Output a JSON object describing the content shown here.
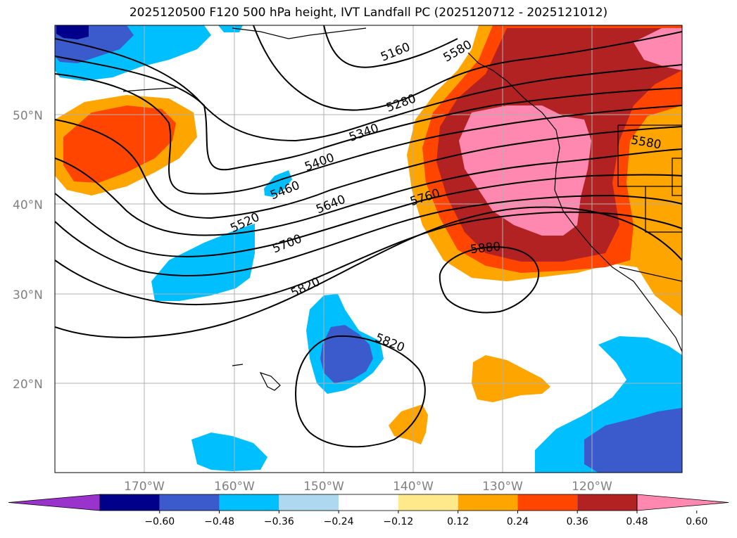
{
  "title": "2025120500 F120 500 hPa height, IVT Landfall PC (2025120712 - 2025121012)",
  "map": {
    "lat_labels": [
      "50°N",
      "40°N",
      "30°N",
      "20°N"
    ],
    "lon_labels": [
      "170°W",
      "160°W",
      "150°W",
      "140°W",
      "130°W",
      "120°W"
    ],
    "grid": true
  },
  "height_contour_labels": [
    "5160",
    "5280",
    "5340",
    "5400",
    "5460",
    "5520",
    "5580",
    "5640",
    "5700",
    "5760",
    "5820",
    "5820",
    "5880",
    "5580"
  ],
  "colorbar": {
    "ticks": [
      "−0.60",
      "−0.48",
      "−0.36",
      "−0.24",
      "−0.12",
      "0.12",
      "0.24",
      "0.36",
      "0.48",
      "0.60"
    ],
    "colors": [
      "#9933cc",
      "#00008b",
      "#3b5bcc",
      "#00bfff",
      "#add8f0",
      "#ffffff",
      "#ffe98a",
      "#ffa500",
      "#ff4500",
      "#b22222",
      "#ff88b0"
    ],
    "extend": "both"
  },
  "fill_colors": {
    "pink": "#ff88b0",
    "darkred": "#b22222",
    "red": "#ff4500",
    "orange": "#ffa500",
    "cyan": "#00bfff",
    "blue": "#3b5bcc",
    "navy": "#00008b"
  }
}
